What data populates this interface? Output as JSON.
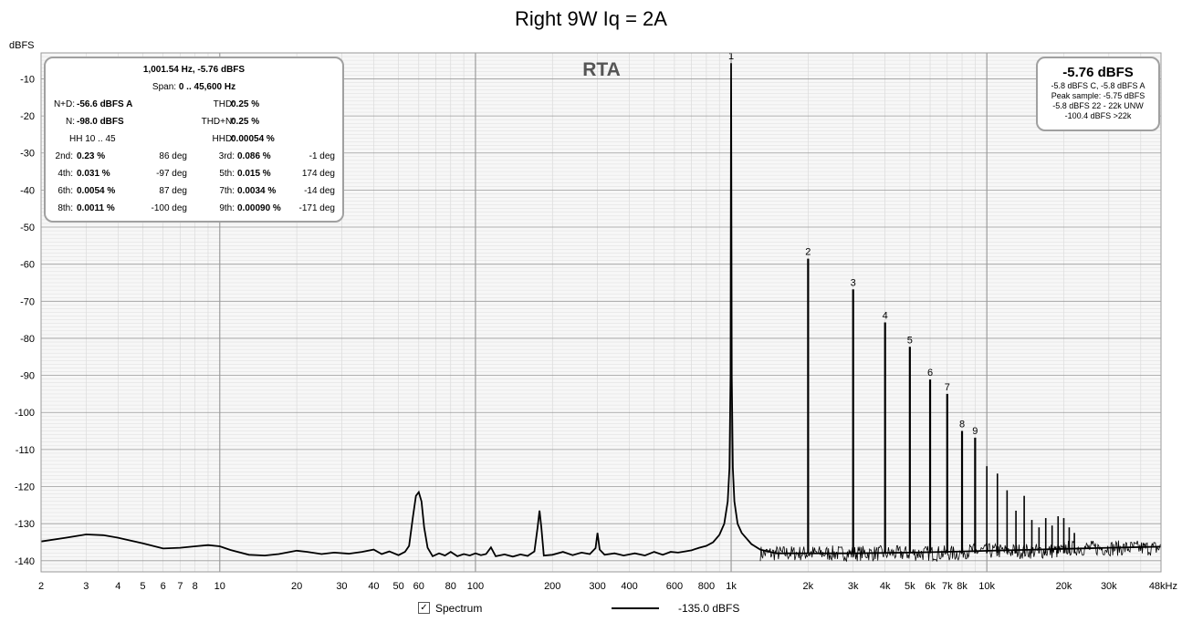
{
  "chart_data": {
    "type": "line",
    "title": "Right 9W Iq = 2A",
    "ylabel": "dBFS",
    "xlabel": "",
    "x_scale": "log",
    "xlim": [
      2,
      48000
    ],
    "ylim": [
      -143,
      -3
    ],
    "x_ticks": [
      {
        "v": 2,
        "l": "2"
      },
      {
        "v": 3,
        "l": "3"
      },
      {
        "v": 4,
        "l": "4"
      },
      {
        "v": 5,
        "l": "5"
      },
      {
        "v": 6,
        "l": "6"
      },
      {
        "v": 7,
        "l": "7"
      },
      {
        "v": 8,
        "l": "8"
      },
      {
        "v": 10,
        "l": "10"
      },
      {
        "v": 20,
        "l": "20"
      },
      {
        "v": 30,
        "l": "30"
      },
      {
        "v": 40,
        "l": "40"
      },
      {
        "v": 50,
        "l": "50"
      },
      {
        "v": 60,
        "l": "60"
      },
      {
        "v": 80,
        "l": "80"
      },
      {
        "v": 100,
        "l": "100"
      },
      {
        "v": 200,
        "l": "200"
      },
      {
        "v": 300,
        "l": "300"
      },
      {
        "v": 400,
        "l": "400"
      },
      {
        "v": 600,
        "l": "600"
      },
      {
        "v": 800,
        "l": "800"
      },
      {
        "v": 1000,
        "l": "1k"
      },
      {
        "v": 2000,
        "l": "2k"
      },
      {
        "v": 3000,
        "l": "3k"
      },
      {
        "v": 4000,
        "l": "4k"
      },
      {
        "v": 5000,
        "l": "5k"
      },
      {
        "v": 6000,
        "l": "6k"
      },
      {
        "v": 7000,
        "l": "7k"
      },
      {
        "v": 8000,
        "l": "8k"
      },
      {
        "v": 10000,
        "l": "10k"
      },
      {
        "v": 20000,
        "l": "20k"
      },
      {
        "v": 30000,
        "l": "30k"
      },
      {
        "v": 48000,
        "l": "48kHz"
      }
    ],
    "y_ticks": [
      -10,
      -20,
      -30,
      -40,
      -50,
      -60,
      -70,
      -80,
      -90,
      -100,
      -110,
      -120,
      -130,
      -140
    ],
    "grid": true,
    "overlay_label": "RTA",
    "series": [
      {
        "name": "Spectrum",
        "color": "#000000",
        "points": [
          [
            2,
            -134.8
          ],
          [
            2.5,
            -133.8
          ],
          [
            3,
            -132.9
          ],
          [
            3.5,
            -133.1
          ],
          [
            4,
            -133.8
          ],
          [
            5,
            -135.3
          ],
          [
            6,
            -136.7
          ],
          [
            7,
            -136.5
          ],
          [
            8,
            -136.1
          ],
          [
            9,
            -135.8
          ],
          [
            10,
            -136.1
          ],
          [
            11,
            -137.1
          ],
          [
            13,
            -138.4
          ],
          [
            15,
            -138.6
          ],
          [
            17,
            -138.2
          ],
          [
            20,
            -137.3
          ],
          [
            22,
            -137.6
          ],
          [
            25,
            -138.2
          ],
          [
            28,
            -137.8
          ],
          [
            32,
            -138.1
          ],
          [
            36,
            -137.6
          ],
          [
            40,
            -137
          ],
          [
            43,
            -138.2
          ],
          [
            46,
            -137.5
          ],
          [
            50,
            -138.5
          ],
          [
            53,
            -137.6
          ],
          [
            55,
            -136
          ],
          [
            57,
            -128
          ],
          [
            58.5,
            -122.5
          ],
          [
            60,
            -121.5
          ],
          [
            61.5,
            -124
          ],
          [
            63,
            -131
          ],
          [
            65,
            -136.5
          ],
          [
            68,
            -138.8
          ],
          [
            72,
            -138
          ],
          [
            76,
            -138.6
          ],
          [
            80,
            -137.6
          ],
          [
            85,
            -138.8
          ],
          [
            90,
            -138.2
          ],
          [
            95,
            -138.6
          ],
          [
            100,
            -138
          ],
          [
            105,
            -138.5
          ],
          [
            110,
            -138.2
          ],
          [
            115,
            -136.4
          ],
          [
            120,
            -138.8
          ],
          [
            130,
            -138.3
          ],
          [
            140,
            -138.9
          ],
          [
            150,
            -138.3
          ],
          [
            160,
            -138.7
          ],
          [
            170,
            -137.5
          ],
          [
            175,
            -131
          ],
          [
            178,
            -126.5
          ],
          [
            181,
            -131
          ],
          [
            185,
            -138.6
          ],
          [
            200,
            -138.4
          ],
          [
            220,
            -137.6
          ],
          [
            240,
            -138.5
          ],
          [
            260,
            -137.8
          ],
          [
            280,
            -138.2
          ],
          [
            295,
            -136.6
          ],
          [
            300,
            -132.5
          ],
          [
            306,
            -137
          ],
          [
            320,
            -138.4
          ],
          [
            350,
            -138
          ],
          [
            380,
            -138.6
          ],
          [
            420,
            -138
          ],
          [
            460,
            -138.6
          ],
          [
            500,
            -137.6
          ],
          [
            540,
            -138.4
          ],
          [
            580,
            -137.6
          ],
          [
            620,
            -137.8
          ],
          [
            660,
            -137.5
          ],
          [
            700,
            -137.2
          ],
          [
            750,
            -136.5
          ],
          [
            800,
            -136
          ],
          [
            850,
            -135
          ],
          [
            900,
            -133
          ],
          [
            940,
            -130
          ],
          [
            970,
            -124
          ],
          [
            985,
            -115
          ],
          [
            995,
            -90
          ],
          [
            1000,
            -5.76
          ],
          [
            1005,
            -90
          ],
          [
            1015,
            -115
          ],
          [
            1030,
            -124
          ],
          [
            1060,
            -130
          ],
          [
            1100,
            -132.5
          ],
          [
            1200,
            -135.5
          ],
          [
            1300,
            -137
          ],
          [
            1500,
            -138
          ],
          [
            2000,
            -138
          ],
          [
            3000,
            -138
          ],
          [
            5000,
            -137.8
          ],
          [
            8000,
            -137.5
          ],
          [
            12000,
            -137.2
          ],
          [
            20000,
            -136.8
          ],
          [
            30000,
            -136.5
          ],
          [
            48000,
            -136.2
          ]
        ]
      }
    ],
    "harmonic_peaks": [
      {
        "label": "1",
        "f": 1000,
        "db": -5.76
      },
      {
        "label": "2",
        "f": 2000,
        "db": -58.5
      },
      {
        "label": "3",
        "f": 3000,
        "db": -66.8
      },
      {
        "label": "4",
        "f": 4000,
        "db": -75.7
      },
      {
        "label": "5",
        "f": 5000,
        "db": -82.3
      },
      {
        "label": "6",
        "f": 6000,
        "db": -91.1
      },
      {
        "label": "7",
        "f": 7000,
        "db": -95
      },
      {
        "label": "8",
        "f": 8000,
        "db": -105
      },
      {
        "label": "9",
        "f": 9000,
        "db": -106.8
      }
    ],
    "unlabeled_peaks": [
      {
        "f": 10000,
        "db": -114.5
      },
      {
        "f": 11000,
        "db": -116.5
      },
      {
        "f": 12000,
        "db": -121
      },
      {
        "f": 13000,
        "db": -126.5
      },
      {
        "f": 14000,
        "db": -122.5
      },
      {
        "f": 15000,
        "db": -129
      },
      {
        "f": 16000,
        "db": -131
      },
      {
        "f": 17000,
        "db": -128.5
      },
      {
        "f": 18000,
        "db": -130.5
      },
      {
        "f": 19000,
        "db": -128
      },
      {
        "f": 20000,
        "db": -128.5
      },
      {
        "f": 21000,
        "db": -131
      },
      {
        "f": 22000,
        "db": -132.5
      }
    ]
  },
  "summary": {
    "freq_line": "1,001.54 Hz, -5.76 dBFS",
    "span_label": "Span:",
    "span_value": "0 .. 45,600 Hz",
    "nd_label": "N+D:",
    "nd_value": "-56.6 dBFS A",
    "thd_label": "THD:",
    "thd_value": "0.25 %",
    "n_label": "N:",
    "n_value": "-98.0 dBFS",
    "thdn_label": "THD+N:",
    "thdn_value": "0.25 %",
    "hh_label": "HH 10 .. 45",
    "hhd_label": "HHD:",
    "hhd_value": "0.00054 %",
    "harmonics": [
      {
        "label": "2nd:",
        "value": "0.23 %",
        "phase": "86 deg"
      },
      {
        "label": "3rd:",
        "value": "0.086 %",
        "phase": "-1 deg"
      },
      {
        "label": "4th:",
        "value": "0.031 %",
        "phase": "-97 deg"
      },
      {
        "label": "5th:",
        "value": "0.015 %",
        "phase": "174 deg"
      },
      {
        "label": "6th:",
        "value": "0.0054 %",
        "phase": "87 deg"
      },
      {
        "label": "7th:",
        "value": "0.0034 %",
        "phase": "-14 deg"
      },
      {
        "label": "8th:",
        "value": "0.0011 %",
        "phase": "-100 deg"
      },
      {
        "label": "9th:",
        "value": "0.00090 %",
        "phase": "-171 deg"
      }
    ]
  },
  "level_box": {
    "main": "-5.76 dBFS",
    "lines": [
      "-5.8 dBFS C, -5.8 dBFS A",
      "Peak sample: -5.75 dBFS",
      "-5.8 dBFS 22 - 22k UNW",
      "-100.4 dBFS >22k"
    ]
  },
  "legend": {
    "checkbox_mark": "✓",
    "spectrum_label": "Spectrum",
    "level": "-135.0 dBFS"
  }
}
